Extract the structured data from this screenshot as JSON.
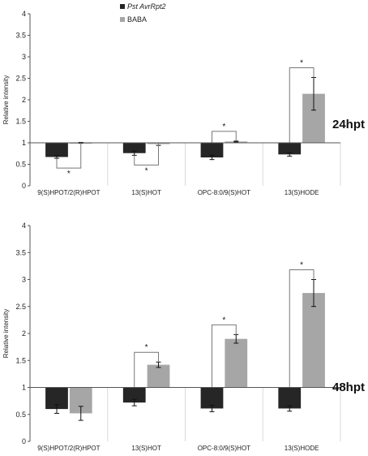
{
  "chart_data": [
    {
      "type": "bar",
      "panel_label": "24hpt",
      "ylabel": "Relative intensity",
      "ylim": [
        0,
        4
      ],
      "yticks": [
        "0",
        "0.5",
        "1",
        "1.5",
        "2",
        "2.5",
        "3",
        "3.5",
        "4"
      ],
      "baseline": 1,
      "categories": [
        "9(S)HPOT/2(R)HPOT",
        "13(S)HOT",
        "OPC-8:0/9(S)HOT",
        "13(S)HODE"
      ],
      "series": [
        {
          "name": "Pst AvrRpt2",
          "color": "#262626",
          "values": [
            0.67,
            0.76,
            0.66,
            0.73
          ],
          "errors": [
            0.03,
            0.05,
            0.05,
            0.04
          ]
        },
        {
          "name": "BABA",
          "color": "#a6a6a6",
          "values": [
            1.0,
            0.97,
            1.03,
            2.14
          ],
          "errors": [
            0.01,
            0.03,
            0.01,
            0.38
          ]
        }
      ],
      "significance": [
        "*",
        "*",
        "*",
        "*"
      ]
    },
    {
      "type": "bar",
      "panel_label": "48hpt",
      "ylabel": "Relative intensity",
      "ylim": [
        0,
        4
      ],
      "yticks": [
        "0",
        "0.5",
        "1",
        "1.5",
        "2",
        "2.5",
        "3",
        "3.5",
        "4"
      ],
      "baseline": 1,
      "categories": [
        "9(S)HPOT/2(R)HPOT",
        "13(S)HOT",
        "OPC-8:0/9(S)HOT",
        "13(S)HODE"
      ],
      "series": [
        {
          "name": "Pst AvrRpt2",
          "color": "#262626",
          "values": [
            0.6,
            0.72,
            0.61,
            0.61
          ],
          "errors": [
            0.08,
            0.06,
            0.06,
            0.05
          ]
        },
        {
          "name": "BABA",
          "color": "#a6a6a6",
          "values": [
            0.52,
            1.42,
            1.9,
            2.75
          ],
          "errors": [
            0.13,
            0.05,
            0.08,
            0.25
          ]
        }
      ],
      "significance": [
        "",
        "*",
        "*",
        "*"
      ]
    }
  ]
}
